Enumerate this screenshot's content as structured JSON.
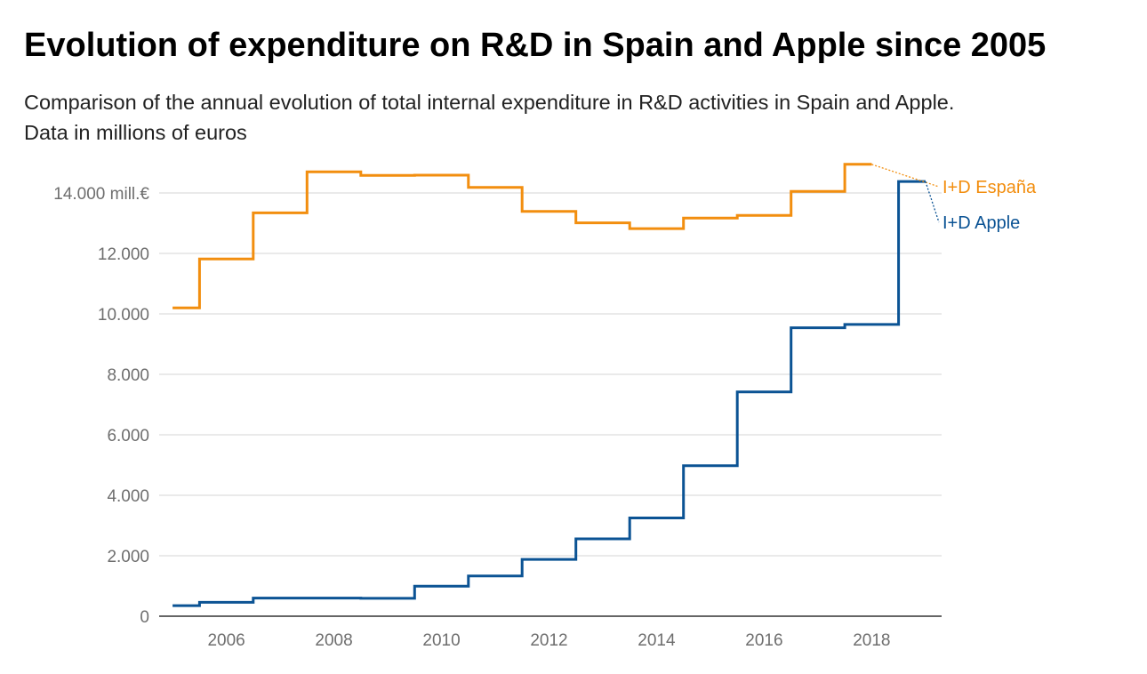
{
  "chart_data": {
    "type": "line",
    "step": true,
    "title": "Evolution of expenditure on R&D in Spain and Apple since 2005",
    "subtitle_lines": [
      "Comparison of the annual evolution of total internal expenditure in R&D activities in Spain and Apple.",
      "Data in millions of euros"
    ],
    "x": [
      2005,
      2006,
      2007,
      2008,
      2009,
      2010,
      2011,
      2012,
      2013,
      2014,
      2015,
      2016,
      2017,
      2018,
      2019
    ],
    "xlim": [
      2004.75,
      2019.3
    ],
    "ylim": [
      0,
      14500
    ],
    "x_ticks": [
      2006,
      2008,
      2010,
      2012,
      2014,
      2016,
      2018
    ],
    "y_ticks": [
      {
        "value": 0,
        "label": "0"
      },
      {
        "value": 2000,
        "label": "2.000"
      },
      {
        "value": 4000,
        "label": "4.000"
      },
      {
        "value": 6000,
        "label": "6.000"
      },
      {
        "value": 8000,
        "label": "8.000"
      },
      {
        "value": 10000,
        "label": "10.000"
      },
      {
        "value": 12000,
        "label": "12.000"
      },
      {
        "value": 14000,
        "label": "14.000 mill.€"
      }
    ],
    "grid": true,
    "series": [
      {
        "name": "I+D España",
        "color": "#f28e0f",
        "values": [
          10197,
          11815,
          13342,
          14701,
          14582,
          14588,
          14184,
          13392,
          13012,
          12821,
          13172,
          13260,
          14052,
          14946,
          null
        ]
      },
      {
        "name": "I+D Apple",
        "color": "#0b5394",
        "values": [
          350,
          460,
          600,
          600,
          590,
          990,
          1330,
          1880,
          2560,
          3250,
          4980,
          7420,
          9540,
          9650,
          14380
        ]
      }
    ]
  }
}
